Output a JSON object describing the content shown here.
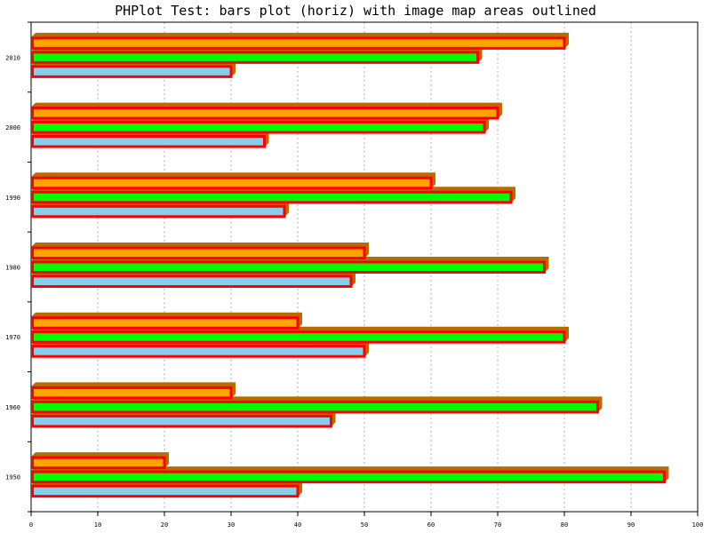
{
  "chart_data": {
    "type": "bar",
    "orientation": "horizontal",
    "title": "PHPlot Test: bars plot (horiz) with image map areas outlined",
    "xlabel": "",
    "ylabel": "",
    "categories": [
      "1950",
      "1960",
      "1970",
      "1980",
      "1990",
      "2000",
      "2010"
    ],
    "series": [
      {
        "values": [
          40,
          45,
          50,
          48,
          38,
          35,
          30
        ],
        "color": "#87ceeb"
      },
      {
        "values": [
          95,
          85,
          80,
          77,
          72,
          68,
          67
        ],
        "color": "#00ff00"
      },
      {
        "values": [
          20,
          30,
          40,
          50,
          60,
          70,
          80
        ],
        "color": "#ffa500"
      }
    ],
    "xlim": [
      0,
      100
    ],
    "xticks": [
      0,
      10,
      20,
      30,
      40,
      50,
      60,
      70,
      80,
      90,
      100
    ],
    "grid": "vertical dashed",
    "legend": "none",
    "shading": "3d",
    "image_map_outline_color": "#ff0000",
    "shadow_color": "#bb6a00"
  }
}
